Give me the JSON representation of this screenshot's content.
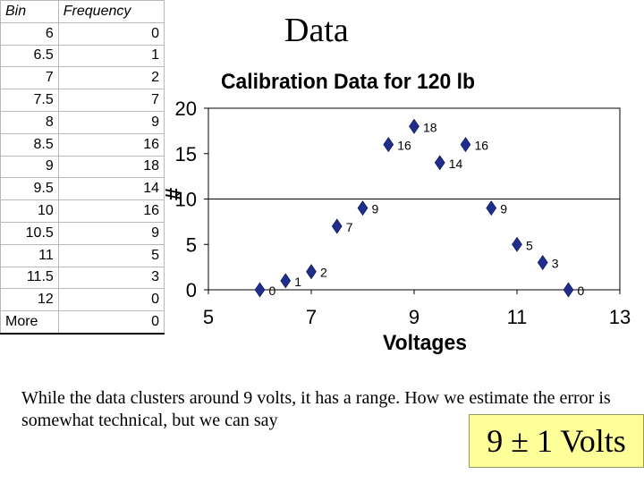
{
  "slide": {
    "title": "Data",
    "caption": "While the data clusters around 9 volts, it has a range.  How we estimate the error is somewhat technical, but we can say",
    "answer": "9 ± 1 Volts"
  },
  "table": {
    "headers": [
      "Bin",
      "Frequency"
    ],
    "rows": [
      [
        "6",
        "0"
      ],
      [
        "6.5",
        "1"
      ],
      [
        "7",
        "2"
      ],
      [
        "7.5",
        "7"
      ],
      [
        "8",
        "9"
      ],
      [
        "8.5",
        "16"
      ],
      [
        "9",
        "18"
      ],
      [
        "9.5",
        "14"
      ],
      [
        "10",
        "16"
      ],
      [
        "10.5",
        "9"
      ],
      [
        "11",
        "5"
      ],
      [
        "11.5",
        "3"
      ],
      [
        "12",
        "0"
      ],
      [
        "More",
        "0"
      ]
    ]
  },
  "chart_data": {
    "type": "scatter",
    "title": "Calibration Data for 120 lb",
    "xlabel": "Voltages",
    "ylabel": "#",
    "xlim": [
      5,
      13
    ],
    "ylim": [
      0,
      20
    ],
    "xticks": [
      5,
      7,
      9,
      11,
      13
    ],
    "yticks": [
      0,
      5,
      10,
      15,
      20
    ],
    "gridlines": [
      10
    ],
    "x": [
      6,
      6.5,
      7,
      7.5,
      8,
      8.5,
      9,
      9.5,
      10,
      10.5,
      11,
      11.5,
      12
    ],
    "y": [
      0,
      1,
      2,
      7,
      9,
      16,
      18,
      14,
      16,
      9,
      5,
      3,
      0
    ],
    "labels": [
      "0",
      "1",
      "2",
      "7",
      "9",
      "16",
      "18",
      "14",
      "16",
      "9",
      "5",
      "3",
      "0"
    ],
    "marker_color": "#1f2d8c"
  }
}
